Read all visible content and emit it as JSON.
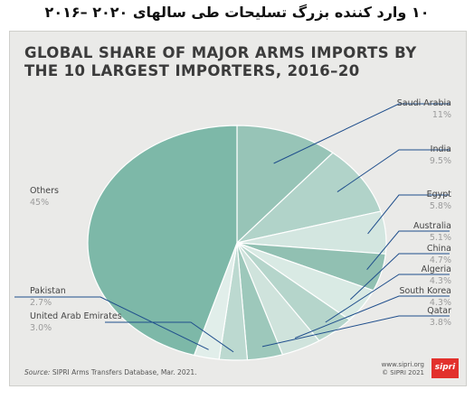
{
  "header": {
    "persian_title": "۱۰ وارد کننده بزرگ تسلیحات طی سالهای ۲۰۲۰ –۲۰۱۶"
  },
  "footer": {
    "source_prefix": "Source:",
    "source_text": "SIPRI Arms Transfers Database, Mar. 2021.",
    "credit_url": "www.sipri.org",
    "credit_copyright": "© SIPRI 2021",
    "logo_text": "sipri"
  },
  "colors": {
    "background": "#eaeae8",
    "others": "#7db8a8",
    "leader_lines": "#1f4e8c",
    "logo": "#e2312d"
  },
  "chart_data": {
    "type": "pie",
    "title_lines": [
      "GLOBAL SHARE OF MAJOR ARMS IMPORTS BY",
      "THE 10 LARGEST IMPORTERS, 2016–20"
    ],
    "unit": "%",
    "slices": [
      {
        "label": "Saudi Arabia",
        "value": 11,
        "value_label": "11%",
        "color": "#97c4b7"
      },
      {
        "label": "India",
        "value": 9.5,
        "value_label": "9.5%",
        "color": "#b1d3c9"
      },
      {
        "label": "Egypt",
        "value": 5.8,
        "value_label": "5.8%",
        "color": "#d3e6e0"
      },
      {
        "label": "Australia",
        "value": 5.1,
        "value_label": "5.1%",
        "color": "#91c0b2"
      },
      {
        "label": "China",
        "value": 4.7,
        "value_label": "4.7%",
        "color": "#d9eae4"
      },
      {
        "label": "Algeria",
        "value": 4.3,
        "value_label": "4.3%",
        "color": "#b5d5cb"
      },
      {
        "label": "South Korea",
        "value": 4.3,
        "value_label": "4.3%",
        "color": "#cfe3dc"
      },
      {
        "label": "Qatar",
        "value": 3.8,
        "value_label": "3.8%",
        "color": "#9dc8bb"
      },
      {
        "label": "United Arab Emirates",
        "value": 3.0,
        "value_label": "3.0%",
        "color": "#bcd9d0"
      },
      {
        "label": "Pakistan",
        "value": 2.7,
        "value_label": "2.7%",
        "color": "#e1eeea"
      },
      {
        "label": "Others",
        "value": 45,
        "value_label": "45%",
        "color": "#7db8a8"
      }
    ]
  }
}
